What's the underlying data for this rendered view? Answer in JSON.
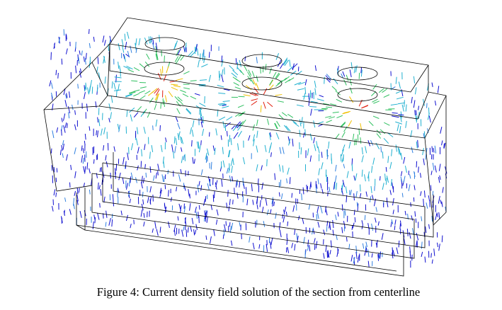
{
  "figure": {
    "caption": "Figure 4: Current density field solution of the section from centerline"
  }
}
